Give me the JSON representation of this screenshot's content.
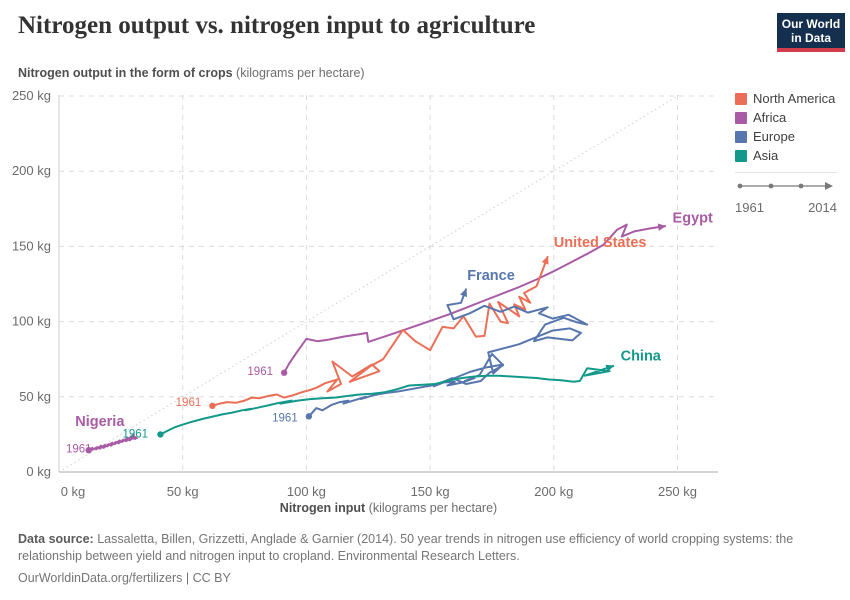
{
  "header": {
    "title": "Nitrogen output vs. nitrogen input to agriculture",
    "y_axis_title_bold": "Nitrogen output in the form of crops",
    "y_axis_title_unit": " (kilograms per hectare)"
  },
  "logo": {
    "line1": "Our World",
    "line2": "in Data"
  },
  "legend": {
    "items": [
      {
        "label": "North America",
        "color": "#EB6F56"
      },
      {
        "label": "Africa",
        "color": "#A95BA5"
      },
      {
        "label": "Europe",
        "color": "#5876AE"
      },
      {
        "label": "Asia",
        "color": "#13998A"
      }
    ],
    "timeline": {
      "start": "1961",
      "end": "2014"
    }
  },
  "axes": {
    "x": {
      "ticks": [
        0,
        50,
        100,
        150,
        200,
        250
      ],
      "tick_suffix": " kg",
      "label_bold": "Nitrogen input",
      "label_unit": " (kilograms per hectare)"
    },
    "y": {
      "ticks": [
        0,
        50,
        100,
        150,
        200,
        250
      ],
      "tick_suffix": " kg"
    }
  },
  "chart_data": {
    "type": "connected-scatter",
    "x_range": [
      0,
      266
    ],
    "y_range": [
      0,
      250
    ],
    "grid": true,
    "start_year": "1961",
    "end_year": "2014",
    "reference_line": {
      "style": "dotted-diagonal",
      "points": [
        [
          0,
          0
        ],
        [
          250.5,
          250.5
        ]
      ]
    },
    "series": [
      {
        "id": "nigeria",
        "name": "Nigeria",
        "region": "Africa",
        "color": "#A95BA5",
        "label": {
          "x": 16.5,
          "y": 30.5,
          "anchor": "middle"
        },
        "year_label": {
          "text": "1961",
          "x": 8,
          "y": 13,
          "anchor": "middle"
        },
        "points": [
          [
            12,
            14.5
          ],
          [
            13.5,
            16
          ],
          [
            13,
            14.5
          ],
          [
            15.5,
            16.5
          ],
          [
            15,
            15
          ],
          [
            17,
            17.5
          ],
          [
            16.5,
            15.5
          ],
          [
            18.5,
            18
          ],
          [
            18,
            16
          ],
          [
            20,
            18.5
          ],
          [
            19.5,
            17
          ],
          [
            21.5,
            19.5
          ],
          [
            21,
            17.5
          ],
          [
            23,
            20
          ],
          [
            22.5,
            18.5
          ],
          [
            24.5,
            21
          ],
          [
            24,
            19
          ],
          [
            26,
            21.5
          ],
          [
            25.5,
            20
          ],
          [
            27.5,
            22.5
          ],
          [
            27,
            20.5
          ],
          [
            29,
            22.5
          ],
          [
            28.5,
            21
          ],
          [
            30.5,
            23.5
          ],
          [
            31.5,
            22.5
          ],
          [
            29.5,
            23
          ],
          [
            28,
            22.3
          ]
        ]
      },
      {
        "id": "egypt",
        "name": "Egypt",
        "region": "Africa",
        "color": "#A95BA5",
        "label": {
          "x": 248,
          "y": 166,
          "anchor": "start"
        },
        "year_label": {
          "text": "1961",
          "x": 86.5,
          "y": 64.5,
          "anchor": "end"
        },
        "points": [
          [
            91,
            66
          ],
          [
            93,
            72
          ],
          [
            96.5,
            80.5
          ],
          [
            100,
            88.5
          ],
          [
            104.5,
            87
          ],
          [
            109,
            88
          ],
          [
            115,
            90
          ],
          [
            121,
            91.5
          ],
          [
            124.5,
            92.5
          ],
          [
            125,
            86.5
          ],
          [
            130.5,
            89.5
          ],
          [
            137,
            93
          ],
          [
            144,
            97
          ],
          [
            151,
            101
          ],
          [
            158,
            105
          ],
          [
            165,
            109.5
          ],
          [
            172,
            114
          ],
          [
            179,
            118.5
          ],
          [
            186,
            123
          ],
          [
            193,
            128
          ],
          [
            200,
            133.5
          ],
          [
            207,
            139.5
          ],
          [
            214,
            145.5
          ],
          [
            220,
            151
          ],
          [
            225.5,
            161
          ],
          [
            229.5,
            164.5
          ],
          [
            227.5,
            156.5
          ],
          [
            232.5,
            160
          ],
          [
            239,
            162
          ],
          [
            245,
            163.5
          ]
        ]
      },
      {
        "id": "united-states",
        "name": "United States",
        "region": "North America",
        "color": "#EB6F56",
        "label": {
          "x": 200,
          "y": 149.5,
          "anchor": "start"
        },
        "year_label": {
          "text": "1961",
          "x": 57.5,
          "y": 44,
          "anchor": "end"
        },
        "points": [
          [
            62,
            44
          ],
          [
            65,
            45.5
          ],
          [
            68,
            46.5
          ],
          [
            71.5,
            46
          ],
          [
            75,
            47.5
          ],
          [
            78,
            49.5
          ],
          [
            81,
            49
          ],
          [
            84.5,
            50.5
          ],
          [
            88,
            51.5
          ],
          [
            91,
            49.5
          ],
          [
            94.5,
            51
          ],
          [
            98,
            53
          ],
          [
            101.5,
            54.5
          ],
          [
            104,
            56
          ],
          [
            107.5,
            59
          ],
          [
            112.5,
            61.5
          ],
          [
            108.5,
            53.5
          ],
          [
            114,
            58.5
          ],
          [
            110.5,
            73.5
          ],
          [
            118.5,
            63.5
          ],
          [
            126.5,
            71.5
          ],
          [
            129.5,
            67
          ],
          [
            117.5,
            60
          ],
          [
            126,
            70.5
          ],
          [
            131,
            75
          ],
          [
            139,
            94.5
          ],
          [
            144,
            87
          ],
          [
            150,
            81
          ],
          [
            155,
            96.5
          ],
          [
            159.5,
            95.5
          ],
          [
            163.5,
            103.5
          ],
          [
            168.5,
            90
          ],
          [
            172,
            90.5
          ],
          [
            174,
            112
          ],
          [
            178.5,
            100
          ],
          [
            181.5,
            99
          ],
          [
            177.5,
            113
          ],
          [
            183,
            107
          ],
          [
            186,
            103.5
          ],
          [
            184,
            111.5
          ],
          [
            188.5,
            108
          ],
          [
            186,
            116.5
          ],
          [
            190.5,
            112.5
          ],
          [
            188,
            119
          ],
          [
            193,
            123.5
          ],
          [
            197.5,
            143
          ]
        ]
      },
      {
        "id": "france",
        "name": "France",
        "region": "Europe",
        "color": "#5876AE",
        "label": {
          "x": 165,
          "y": 127.5,
          "anchor": "start"
        },
        "year_label": {
          "text": "1961",
          "x": 96.5,
          "y": 33.5,
          "anchor": "end"
        },
        "points": [
          [
            101,
            37
          ],
          [
            104,
            42.5
          ],
          [
            106.5,
            41
          ],
          [
            110,
            44.5
          ],
          [
            113.5,
            46.5
          ],
          [
            117,
            47.5
          ],
          [
            115,
            45.5
          ],
          [
            120,
            48
          ],
          [
            124,
            50
          ],
          [
            122,
            48.5
          ],
          [
            127,
            51
          ],
          [
            132,
            52.5
          ],
          [
            137,
            53.5
          ],
          [
            142,
            55
          ],
          [
            147,
            56.5
          ],
          [
            152,
            58
          ],
          [
            149,
            57
          ],
          [
            155,
            59.5
          ],
          [
            160,
            60
          ],
          [
            157,
            57.5
          ],
          [
            163,
            59.5
          ],
          [
            168,
            62.5
          ],
          [
            164,
            60.5
          ],
          [
            170,
            64.5
          ],
          [
            175,
            78.5
          ],
          [
            179.5,
            71
          ],
          [
            174,
            66
          ],
          [
            170.5,
            60.5
          ],
          [
            164.5,
            58.5
          ],
          [
            159,
            62.5
          ],
          [
            154.5,
            59.5
          ],
          [
            151.5,
            57
          ],
          [
            158.5,
            61.5
          ],
          [
            166,
            66.5
          ],
          [
            172.5,
            69.5
          ],
          [
            179.5,
            71.5
          ],
          [
            175.5,
            65.5
          ],
          [
            173.5,
            79.5
          ],
          [
            186,
            85
          ],
          [
            193.5,
            90
          ],
          [
            199.5,
            94
          ],
          [
            206.5,
            95.5
          ],
          [
            211,
            92.5
          ],
          [
            207.5,
            87.5
          ],
          [
            197.5,
            89.5
          ],
          [
            192,
            87
          ],
          [
            196.5,
            98
          ],
          [
            204,
            102.5
          ],
          [
            209.5,
            99.5
          ],
          [
            213.5,
            98
          ],
          [
            206,
            104.5
          ],
          [
            199.5,
            102
          ],
          [
            194,
            105.5
          ],
          [
            197.5,
            109.5
          ],
          [
            189.5,
            106
          ],
          [
            184,
            110
          ],
          [
            178.5,
            106.5
          ],
          [
            172,
            110.5
          ],
          [
            166,
            105.5
          ],
          [
            159.5,
            101.5
          ],
          [
            157,
            111
          ],
          [
            162.5,
            112.5
          ],
          [
            164.5,
            121.5
          ]
        ]
      },
      {
        "id": "china",
        "name": "China",
        "region": "Asia",
        "color": "#13998A",
        "label": {
          "x": 227,
          "y": 74,
          "anchor": "start"
        },
        "year_label": {
          "text": "1961",
          "x": 36,
          "y": 23,
          "anchor": "end"
        },
        "points": [
          [
            41,
            25
          ],
          [
            44,
            27.5
          ],
          [
            46.5,
            29.5
          ],
          [
            50,
            31.5
          ],
          [
            54,
            33.5
          ],
          [
            58.5,
            35.5
          ],
          [
            62.5,
            37
          ],
          [
            66.5,
            38.5
          ],
          [
            70,
            39.5
          ],
          [
            74,
            41
          ],
          [
            77.5,
            42
          ],
          [
            75.5,
            41
          ],
          [
            81,
            43
          ],
          [
            85,
            44.5
          ],
          [
            89,
            46
          ],
          [
            94,
            47.5
          ],
          [
            89.5,
            45.5
          ],
          [
            96.5,
            47.5
          ],
          [
            101.5,
            48.5
          ],
          [
            106.5,
            49
          ],
          [
            111.5,
            49.5
          ],
          [
            116.5,
            50.5
          ],
          [
            121.5,
            51.5
          ],
          [
            126.5,
            52
          ],
          [
            131.5,
            53
          ],
          [
            136.5,
            55
          ],
          [
            141.5,
            57.5
          ],
          [
            147,
            58
          ],
          [
            152,
            58.5
          ],
          [
            158,
            61
          ],
          [
            163,
            62.5
          ],
          [
            168,
            63.5
          ],
          [
            173,
            64
          ],
          [
            178,
            64
          ],
          [
            183,
            63.5
          ],
          [
            188,
            63
          ],
          [
            193,
            62.5
          ],
          [
            198,
            61.5
          ],
          [
            203,
            61
          ],
          [
            208,
            60
          ],
          [
            210.5,
            60.5
          ],
          [
            213.5,
            69
          ],
          [
            222.5,
            67
          ],
          [
            212.5,
            64
          ],
          [
            224,
            70.5
          ]
        ]
      }
    ]
  },
  "footer": {
    "source_label": "Data source:",
    "source_text": " Lassaletta, Billen, Grizzetti, Anglade & Garnier (2014). 50 year trends in nitrogen use efficiency of world cropping systems: the relationship between yield and nitrogen input to cropland. Environmental Research Letters.",
    "url_line": "OurWorldinData.org/fertilizers | CC BY"
  }
}
